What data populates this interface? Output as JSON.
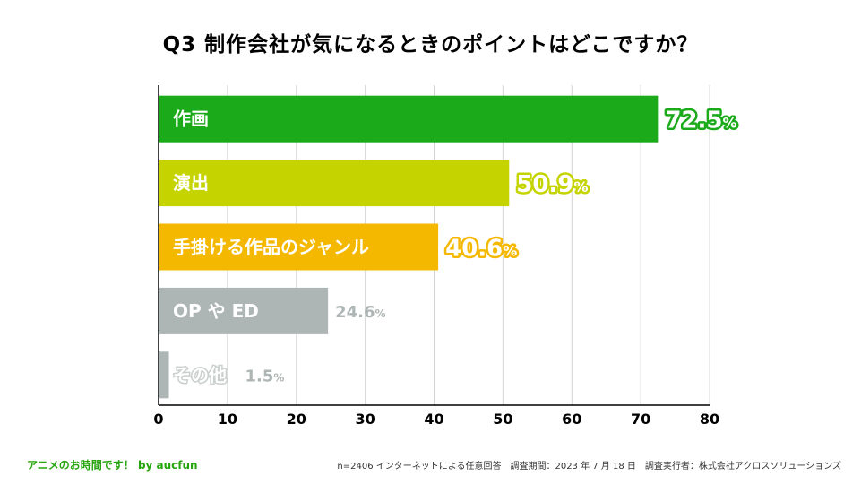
{
  "title": "Q3  制作会社が気になるときのポイントはどこですか？",
  "chart_data": {
    "type": "bar",
    "orientation": "horizontal",
    "title": "Q3  制作会社が気になるときのポイントはどこですか？",
    "categories": [
      "作画",
      "演出",
      "手掛ける作品のジャンル",
      "OP や ED",
      "その他"
    ],
    "values": [
      72.5,
      50.9,
      40.6,
      24.6,
      1.5
    ],
    "value_labels": [
      "72.5",
      "50.9",
      "40.6",
      "24.6",
      "1.5"
    ],
    "value_unit": "%",
    "colors": [
      "#1aaa1a",
      "#c5d400",
      "#f5b800",
      "#aeb6b5",
      "#aeb6b5"
    ],
    "label_colors": [
      "#1aaa1a",
      "#c5d400",
      "#f5b800",
      "#aeb6b5",
      "#aeb6b5"
    ],
    "xlim": [
      0,
      80
    ],
    "xticks": [
      "0",
      "10",
      "20",
      "30",
      "40",
      "50",
      "60",
      "70",
      "80"
    ],
    "xlabel": "",
    "ylabel": "",
    "grid": true
  },
  "footer": {
    "brand": "アニメのお時間です！ by aucfun",
    "note": "n=2406 インターネットによる任意回答　調査期間：2023 年 7 月 18 日　調査実行者：株式会社アクロスソリューションズ"
  }
}
